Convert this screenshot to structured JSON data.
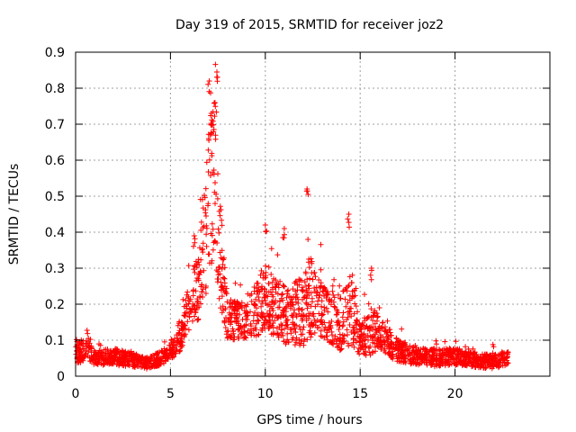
{
  "chart_data": {
    "type": "scatter",
    "title": "Day 319 of 2015, SRMTID for receiver joz2",
    "xlabel": "GPS time / hours",
    "ylabel": "SRMTID / TECUs",
    "xlim": [
      0,
      25
    ],
    "ylim": [
      0,
      0.9
    ],
    "grid": true,
    "marker": "+",
    "series": [
      {
        "name": "SRMTID",
        "color": "#ff0000",
        "profile": [
          [
            0.0,
            0.06,
            0.03
          ],
          [
            0.3,
            0.07,
            0.04
          ],
          [
            0.6,
            0.09,
            0.05
          ],
          [
            1.0,
            0.05,
            0.025
          ],
          [
            2.0,
            0.055,
            0.03
          ],
          [
            3.0,
            0.045,
            0.025
          ],
          [
            3.7,
            0.035,
            0.02
          ],
          [
            4.5,
            0.05,
            0.025
          ],
          [
            5.0,
            0.07,
            0.03
          ],
          [
            5.5,
            0.1,
            0.04
          ],
          [
            6.0,
            0.2,
            0.09
          ],
          [
            6.5,
            0.25,
            0.12
          ],
          [
            7.0,
            0.45,
            0.28
          ],
          [
            7.3,
            0.6,
            0.3
          ],
          [
            7.6,
            0.35,
            0.2
          ],
          [
            8.0,
            0.16,
            0.07
          ],
          [
            9.0,
            0.15,
            0.07
          ],
          [
            10.0,
            0.22,
            0.12
          ],
          [
            11.0,
            0.17,
            0.1
          ],
          [
            12.0,
            0.18,
            0.12
          ],
          [
            12.3,
            0.22,
            0.15
          ],
          [
            13.0,
            0.18,
            0.09
          ],
          [
            14.0,
            0.15,
            0.1
          ],
          [
            14.5,
            0.2,
            0.14
          ],
          [
            15.0,
            0.1,
            0.06
          ],
          [
            15.5,
            0.13,
            0.09
          ],
          [
            16.0,
            0.12,
            0.06
          ],
          [
            17.0,
            0.07,
            0.04
          ],
          [
            18.0,
            0.055,
            0.03
          ],
          [
            19.0,
            0.05,
            0.03
          ],
          [
            20.0,
            0.055,
            0.03
          ],
          [
            21.0,
            0.045,
            0.025
          ],
          [
            22.0,
            0.04,
            0.025
          ],
          [
            22.7,
            0.05,
            0.025
          ]
        ],
        "peaks": [
          [
            7.05,
            0.82
          ],
          [
            7.45,
            0.845
          ],
          [
            7.35,
            0.76
          ],
          [
            7.15,
            0.73
          ],
          [
            12.2,
            0.52
          ],
          [
            14.4,
            0.45
          ],
          [
            10.0,
            0.42
          ],
          [
            11.0,
            0.41
          ],
          [
            15.6,
            0.3
          ],
          [
            6.25,
            0.39
          ]
        ],
        "x_range": [
          0.0,
          22.8
        ],
        "n_points": 2300
      }
    ],
    "xticks": [
      {
        "value": 0,
        "label": "0"
      },
      {
        "value": 5,
        "label": "5"
      },
      {
        "value": 10,
        "label": "10"
      },
      {
        "value": 15,
        "label": "15"
      },
      {
        "value": 20,
        "label": "20"
      }
    ],
    "yticks": [
      {
        "value": 0,
        "label": "0"
      },
      {
        "value": 0.1,
        "label": "0.1"
      },
      {
        "value": 0.2,
        "label": "0.2"
      },
      {
        "value": 0.3,
        "label": "0.3"
      },
      {
        "value": 0.4,
        "label": "0.4"
      },
      {
        "value": 0.5,
        "label": "0.5"
      },
      {
        "value": 0.6,
        "label": "0.6"
      },
      {
        "value": 0.7,
        "label": "0.7"
      },
      {
        "value": 0.8,
        "label": "0.8"
      },
      {
        "value": 0.9,
        "label": "0.9"
      }
    ],
    "grid_color": "#a0a0a0",
    "axis_color": "#000000"
  }
}
